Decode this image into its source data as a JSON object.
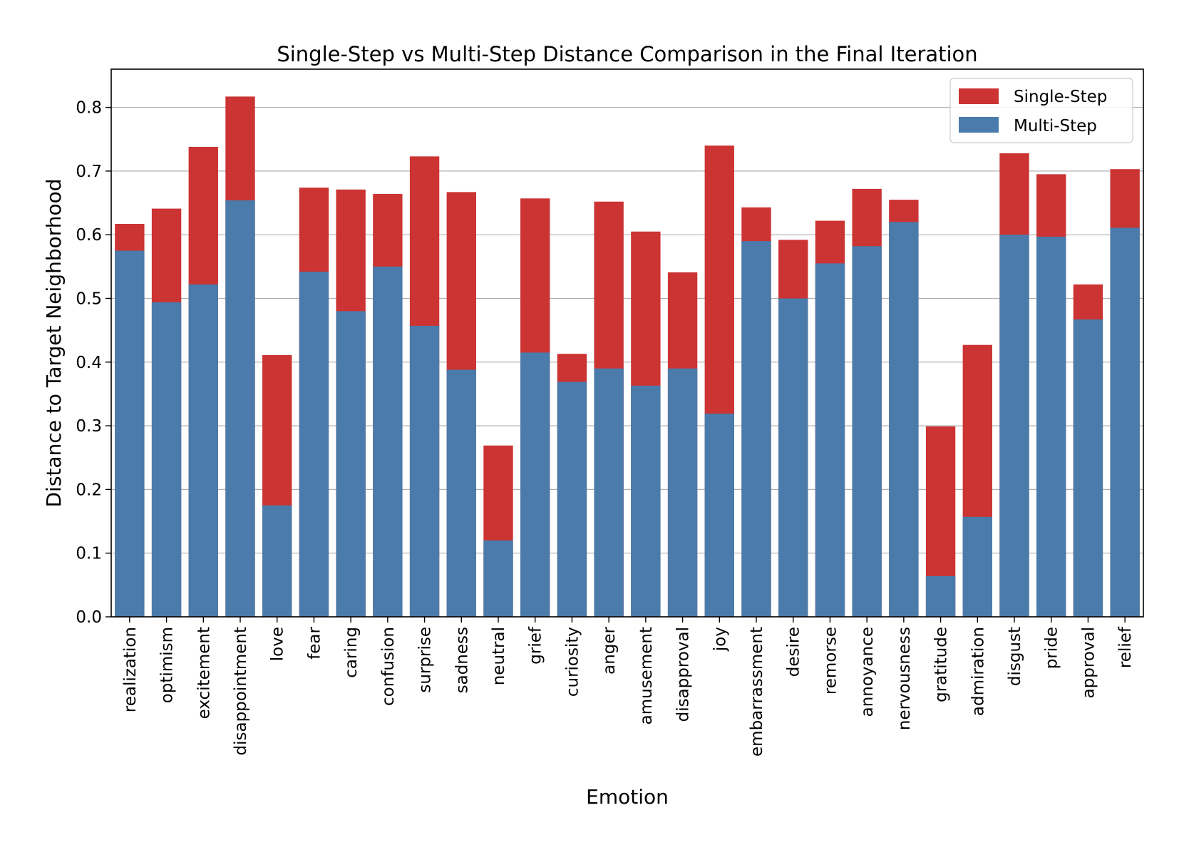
{
  "chart_data": {
    "type": "bar",
    "title": "Single-Step vs Multi-Step Distance Comparison in the Final Iteration",
    "xlabel": "Emotion",
    "ylabel": "Distance to Target Neighborhood",
    "ylim": [
      0,
      0.86
    ],
    "yticks": [
      "0.0",
      "0.1",
      "0.2",
      "0.3",
      "0.4",
      "0.5",
      "0.6",
      "0.7",
      "0.8"
    ],
    "grid": "horizontal",
    "legend_position": "top-right",
    "categories": [
      "realization",
      "optimism",
      "excitement",
      "disappointment",
      "love",
      "fear",
      "caring",
      "confusion",
      "surprise",
      "sadness",
      "neutral",
      "grief",
      "curiosity",
      "anger",
      "amusement",
      "disapproval",
      "joy",
      "embarrassment",
      "desire",
      "remorse",
      "annoyance",
      "nervousness",
      "gratitude",
      "admiration",
      "disgust",
      "pride",
      "approval",
      "relief"
    ],
    "series": [
      {
        "name": "Single-Step",
        "color": "#cc3333",
        "values": [
          0.617,
          0.641,
          0.738,
          0.817,
          0.411,
          0.674,
          0.671,
          0.664,
          0.723,
          0.667,
          0.269,
          0.657,
          0.413,
          0.652,
          0.605,
          0.541,
          0.74,
          0.643,
          0.592,
          0.622,
          0.672,
          0.655,
          0.299,
          0.427,
          0.728,
          0.695,
          0.522,
          0.703
        ]
      },
      {
        "name": "Multi-Step",
        "color": "#4a7bab",
        "values": [
          0.575,
          0.494,
          0.522,
          0.654,
          0.175,
          0.542,
          0.48,
          0.55,
          0.457,
          0.388,
          0.12,
          0.415,
          0.369,
          0.39,
          0.363,
          0.39,
          0.319,
          0.59,
          0.5,
          0.555,
          0.582,
          0.62,
          0.064,
          0.157,
          0.6,
          0.597,
          0.467,
          0.611
        ]
      }
    ]
  }
}
